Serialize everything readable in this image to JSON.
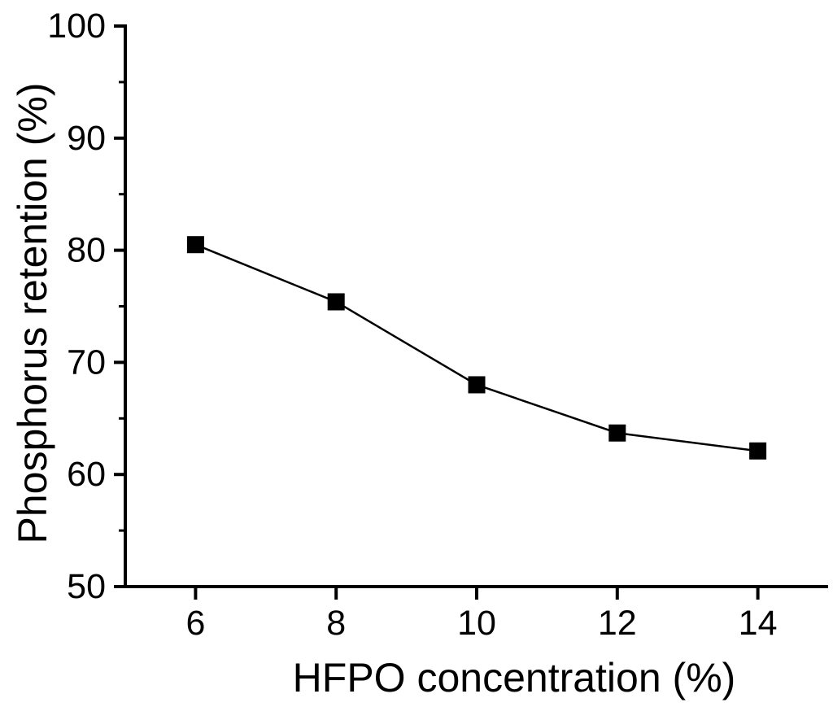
{
  "chart_data": {
    "type": "line",
    "title": "",
    "xlabel": "HFPO concentration (%)",
    "ylabel": "Phosphorus retention (%)",
    "x": [
      6,
      8,
      10,
      12,
      14
    ],
    "series": [
      {
        "name": "Phosphorus retention",
        "color": "#000000",
        "marker": "square",
        "values": [
          80.5,
          75.4,
          68.0,
          63.7,
          62.1
        ]
      }
    ],
    "xlim": [
      5,
      15
    ],
    "ylim": [
      50,
      100
    ],
    "xticks": [
      6,
      8,
      10,
      12,
      14
    ],
    "yticks": [
      50,
      60,
      70,
      80,
      90,
      100
    ],
    "y_minor_ticks": [
      55,
      65,
      75,
      85,
      95
    ],
    "x_minor_ticks": [],
    "grid": false,
    "legend": false,
    "tick_direction": "out",
    "background_color": "#ffffff",
    "axis_color": "#000000"
  }
}
